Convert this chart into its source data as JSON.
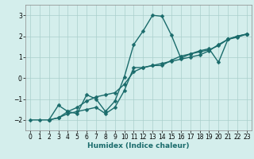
{
  "xlabel": "Humidex (Indice chaleur)",
  "xlim": [
    -0.5,
    23.5
  ],
  "ylim": [
    -2.5,
    3.5
  ],
  "yticks": [
    -2,
    -1,
    0,
    1,
    2,
    3
  ],
  "xticks": [
    0,
    1,
    2,
    3,
    4,
    5,
    6,
    7,
    8,
    9,
    10,
    11,
    12,
    13,
    14,
    15,
    16,
    17,
    18,
    19,
    20,
    21,
    22,
    23
  ],
  "bg_color": "#d4eeec",
  "grid_color": "#aacfcc",
  "line_color": "#1a6b6b",
  "markersize": 2.5,
  "linewidth": 1.0,
  "series": [
    {
      "x": [
        0,
        1,
        2,
        3,
        4,
        5,
        6,
        7,
        8,
        9,
        10,
        11,
        12,
        13,
        14,
        15,
        16,
        17,
        18,
        19,
        20,
        21,
        22,
        23
      ],
      "y": [
        -2,
        -2,
        -2,
        -1.9,
        -1.6,
        -1.4,
        -1.1,
        -0.9,
        -0.8,
        -0.7,
        -0.3,
        0.3,
        0.5,
        0.6,
        0.7,
        0.8,
        0.9,
        1.0,
        1.1,
        1.3,
        1.6,
        1.85,
        2.0,
        2.1
      ]
    },
    {
      "x": [
        2,
        3,
        4,
        5,
        6,
        7,
        8,
        9,
        10,
        11,
        12,
        13,
        14,
        15,
        16,
        17,
        18,
        19,
        20,
        21,
        22,
        23
      ],
      "y": [
        -2,
        -1.3,
        -1.6,
        -1.7,
        -0.8,
        -1.0,
        -1.6,
        -1.1,
        0.05,
        1.6,
        2.25,
        3.0,
        2.95,
        2.05,
        0.95,
        1.15,
        1.3,
        1.4,
        0.75,
        1.85,
        1.95,
        2.1
      ]
    },
    {
      "x": [
        2,
        3,
        4,
        5,
        6,
        7,
        8,
        9,
        10,
        11,
        12,
        13,
        14,
        15,
        16,
        17,
        18,
        19,
        20,
        21,
        22,
        23
      ],
      "y": [
        -2,
        -1.9,
        -1.7,
        -1.6,
        -1.5,
        -1.4,
        -1.7,
        -1.4,
        -0.6,
        0.5,
        0.5,
        0.6,
        0.6,
        0.85,
        1.05,
        1.15,
        1.25,
        1.35,
        1.55,
        1.85,
        2.0,
        2.1
      ]
    }
  ]
}
